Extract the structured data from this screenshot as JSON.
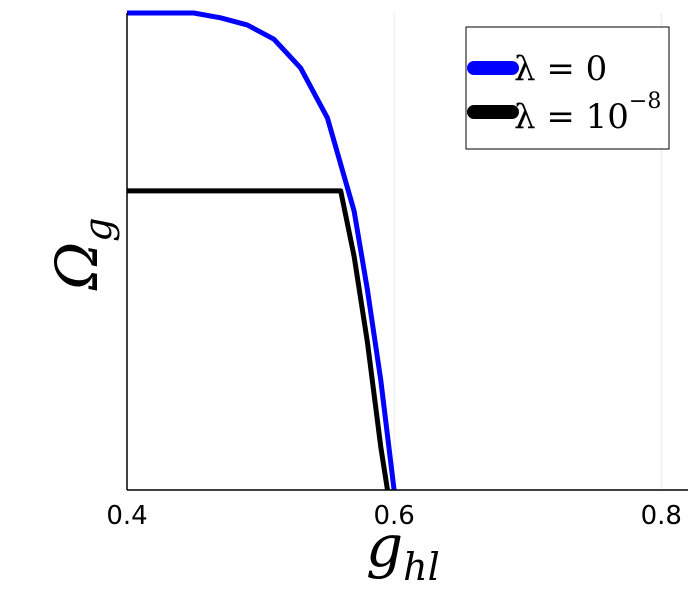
{
  "chart_data": {
    "type": "line",
    "xlabel": "g",
    "xlabel_sub": "hl",
    "ylabel": "Ω",
    "ylabel_sub": "g",
    "xlim": [
      0.4,
      0.82
    ],
    "ylim": [
      0,
      1
    ],
    "xticks": [
      0.4,
      0.6,
      0.8
    ],
    "xtick_labels": [
      "0.4",
      "0.6",
      "0.8"
    ],
    "grid": true,
    "legend_position": "top-right",
    "series": [
      {
        "name": "λ = 0",
        "label_main": "λ = 0",
        "label_sup": "",
        "color": "#0000ff",
        "x": [
          0.4,
          0.45,
          0.47,
          0.49,
          0.51,
          0.53,
          0.55,
          0.57,
          0.58,
          0.59,
          0.6
        ],
        "y": [
          1.0,
          1.0,
          0.99,
          0.975,
          0.945,
          0.885,
          0.78,
          0.585,
          0.42,
          0.23,
          0.0
        ]
      },
      {
        "name": "λ = 10^-8",
        "label_main": "λ = 10",
        "label_sup": "−8",
        "color": "#000000",
        "x": [
          0.4,
          0.56,
          0.57,
          0.58,
          0.59,
          0.595
        ],
        "y": [
          0.627,
          0.627,
          0.49,
          0.31,
          0.09,
          0.0
        ]
      }
    ]
  }
}
